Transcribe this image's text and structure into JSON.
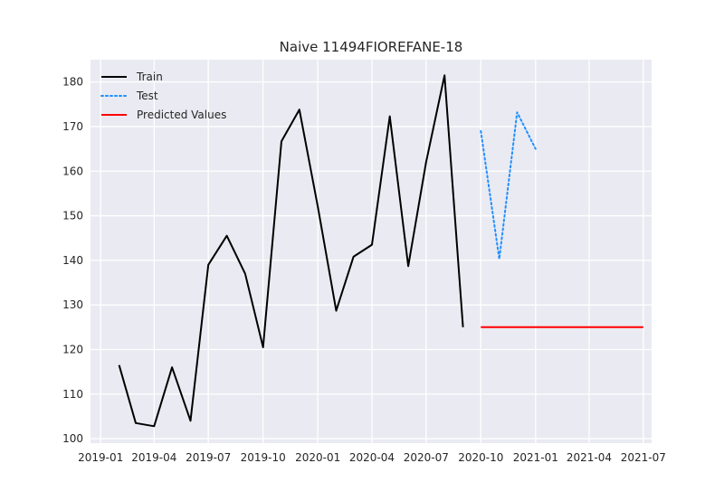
{
  "chart_data": {
    "type": "line",
    "title": "Naive 11494FIOREFANE-18",
    "xlabel": "",
    "ylabel": "",
    "xlim": [
      "2018-12-15",
      "2021-07-15"
    ],
    "ylim": [
      99,
      185
    ],
    "grid": true,
    "legend_position": "top-left",
    "x_ticks": [
      {
        "date": "2019-01-01",
        "label": "2019-01"
      },
      {
        "date": "2019-04-01",
        "label": "2019-04"
      },
      {
        "date": "2019-07-01",
        "label": "2019-07"
      },
      {
        "date": "2019-10-01",
        "label": "2019-10"
      },
      {
        "date": "2020-01-01",
        "label": "2020-01"
      },
      {
        "date": "2020-04-01",
        "label": "2020-04"
      },
      {
        "date": "2020-07-01",
        "label": "2020-07"
      },
      {
        "date": "2020-10-01",
        "label": "2020-10"
      },
      {
        "date": "2021-01-01",
        "label": "2021-01"
      },
      {
        "date": "2021-04-01",
        "label": "2021-04"
      },
      {
        "date": "2021-07-01",
        "label": "2021-07"
      }
    ],
    "y_ticks": [
      100,
      110,
      120,
      130,
      140,
      150,
      160,
      170,
      180
    ],
    "series": [
      {
        "name": "Train",
        "color": "#000000",
        "style": "solid",
        "points": [
          {
            "x": "2019-02-01",
            "y": 116.5
          },
          {
            "x": "2019-03-01",
            "y": 103.5
          },
          {
            "x": "2019-04-01",
            "y": 102.8
          },
          {
            "x": "2019-05-01",
            "y": 116.0
          },
          {
            "x": "2019-06-01",
            "y": 104.0
          },
          {
            "x": "2019-07-01",
            "y": 139.0
          },
          {
            "x": "2019-08-01",
            "y": 145.5
          },
          {
            "x": "2019-09-01",
            "y": 137.0
          },
          {
            "x": "2019-10-01",
            "y": 120.5
          },
          {
            "x": "2019-11-01",
            "y": 166.7
          },
          {
            "x": "2019-12-01",
            "y": 173.8
          },
          {
            "x": "2020-01-01",
            "y": 152.0
          },
          {
            "x": "2020-02-01",
            "y": 128.7
          },
          {
            "x": "2020-03-01",
            "y": 140.8
          },
          {
            "x": "2020-04-01",
            "y": 143.5
          },
          {
            "x": "2020-05-01",
            "y": 172.3
          },
          {
            "x": "2020-06-01",
            "y": 138.7
          },
          {
            "x": "2020-07-01",
            "y": 162.0
          },
          {
            "x": "2020-08-01",
            "y": 181.5
          },
          {
            "x": "2020-09-01",
            "y": 125.0
          }
        ]
      },
      {
        "name": "Test",
        "color": "#1e90ff",
        "style": "dotted",
        "points": [
          {
            "x": "2020-10-01",
            "y": 169.0
          },
          {
            "x": "2020-11-01",
            "y": 140.3
          },
          {
            "x": "2020-12-01",
            "y": 173.2
          },
          {
            "x": "2021-01-01",
            "y": 165.0
          }
        ]
      },
      {
        "name": "Predicted Values",
        "color": "#ff0000",
        "style": "solid",
        "points": [
          {
            "x": "2020-10-01",
            "y": 125.0
          },
          {
            "x": "2021-07-01",
            "y": 125.0
          }
        ]
      }
    ]
  }
}
